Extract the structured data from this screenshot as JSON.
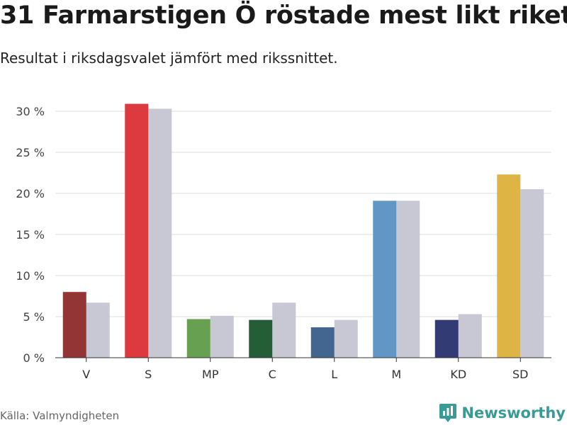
{
  "header": {
    "title": "31 Farmarstigen Ö röstade mest likt riket",
    "subtitle": "Resultat i riksdagsvalet jämfört med rikssnittet."
  },
  "footer": {
    "source": "Källa: Valmyndigheten",
    "brand": "Newsworthy",
    "brand_icon": "newsworthy-logo-icon",
    "brand_color": "#3a9b96"
  },
  "chart_data": {
    "type": "bar",
    "title": "31 Farmarstigen Ö röstade mest likt riket",
    "subtitle": "Resultat i riksdagsvalet jämfört med rikssnittet.",
    "xlabel": "",
    "ylabel": "",
    "ylim": [
      0,
      30
    ],
    "yticks": [
      0,
      5,
      10,
      15,
      20,
      25,
      30
    ],
    "ytick_labels": [
      "0 %",
      "5 %",
      "10 %",
      "15 %",
      "20 %",
      "25 %",
      "30 %"
    ],
    "grid": true,
    "categories": [
      "V",
      "S",
      "MP",
      "C",
      "L",
      "M",
      "KD",
      "SD"
    ],
    "series": [
      {
        "name": "31 Farmarstigen Ö",
        "values": [
          8.0,
          30.9,
          4.7,
          4.6,
          3.7,
          19.1,
          4.6,
          22.3
        ],
        "colors": [
          "#943535",
          "#dc3a3f",
          "#66a050",
          "#255d36",
          "#42668f",
          "#6297c5",
          "#323b73",
          "#deb445"
        ]
      },
      {
        "name": "Rikssnittet",
        "values": [
          6.7,
          30.3,
          5.1,
          6.7,
          4.6,
          19.1,
          5.3,
          20.5
        ],
        "color": "#c8c7d4"
      }
    ]
  }
}
